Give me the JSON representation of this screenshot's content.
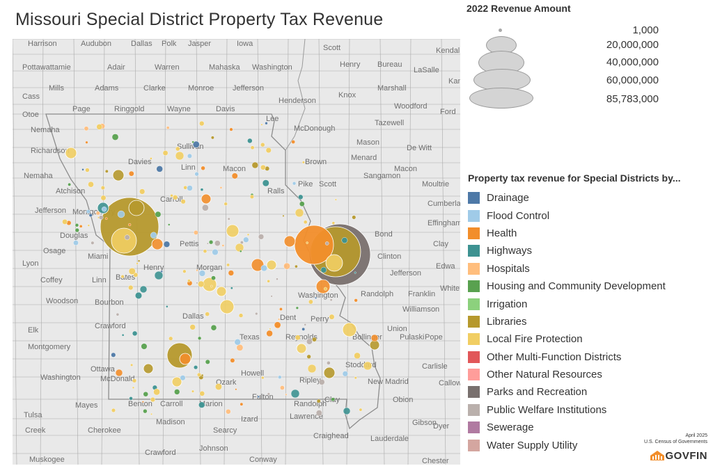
{
  "title": "Missouri Special District Property Tax Revenue",
  "size_legend": {
    "heading": "2022 Revenue Amount",
    "entries": [
      {
        "label": "1,000",
        "value": 1000
      },
      {
        "label": "20,000,000",
        "value": 20000000
      },
      {
        "label": "40,000,000",
        "value": 40000000
      },
      {
        "label": "60,000,000",
        "value": 60000000
      },
      {
        "label": "85,783,000",
        "value": 85783000
      }
    ]
  },
  "color_legend": {
    "heading": "Property tax revenue for Special Districts by...",
    "categories": [
      {
        "label": "Drainage",
        "color": "#4e79a7"
      },
      {
        "label": "Flood Control",
        "color": "#a0cbe8"
      },
      {
        "label": "Health",
        "color": "#f28e2b"
      },
      {
        "label": "Highways",
        "color": "#3d9291"
      },
      {
        "label": "Hospitals",
        "color": "#ffbe7d"
      },
      {
        "label": "Housing and Community Development",
        "color": "#59a14f"
      },
      {
        "label": "Irrigation",
        "color": "#8cd17d"
      },
      {
        "label": "Libraries",
        "color": "#b6992d"
      },
      {
        "label": "Local Fire Protection",
        "color": "#f1ce63"
      },
      {
        "label": "Other Multi-Function Districts",
        "color": "#e15759"
      },
      {
        "label": "Other Natural Resources",
        "color": "#ff9d9a"
      },
      {
        "label": "Parks and Recreation",
        "color": "#79706e"
      },
      {
        "label": "Public Welfare Institutions",
        "color": "#bab0ac"
      },
      {
        "label": "Sewerage",
        "color": "#b07aa1"
      },
      {
        "label": "Water Supply Utility",
        "color": "#d4a6a0"
      }
    ]
  },
  "map": {
    "counties": [
      {
        "label": "Harrison"
      },
      {
        "label": "Audubon"
      },
      {
        "label": "Dallas"
      },
      {
        "label": "Polk"
      },
      {
        "label": "Jasper"
      },
      {
        "label": "Iowa"
      },
      {
        "label": "Scott"
      },
      {
        "label": "Kendall"
      },
      {
        "label": "Pottawattamie"
      },
      {
        "label": "Adair"
      },
      {
        "label": "Warren"
      },
      {
        "label": "Mahaska"
      },
      {
        "label": "Washington"
      },
      {
        "label": "Henry"
      },
      {
        "label": "Bureau"
      },
      {
        "label": "LaSalle"
      },
      {
        "label": "Mills"
      },
      {
        "label": "Adams"
      },
      {
        "label": "Clarke"
      },
      {
        "label": "Monroe"
      },
      {
        "label": "Jefferson"
      },
      {
        "label": "Knox"
      },
      {
        "label": "Marshall"
      },
      {
        "label": "Kan"
      },
      {
        "label": "Cass"
      },
      {
        "label": "Henderson"
      },
      {
        "label": "Page"
      },
      {
        "label": "Ringgold"
      },
      {
        "label": "Wayne"
      },
      {
        "label": "Davis"
      },
      {
        "label": "Woodford"
      },
      {
        "label": "Ford"
      },
      {
        "label": "Otoe"
      },
      {
        "label": "Lee"
      },
      {
        "label": "Tazewell"
      },
      {
        "label": "Nemaha"
      },
      {
        "label": "McDonough"
      },
      {
        "label": "Mason"
      },
      {
        "label": "De Witt"
      },
      {
        "label": "Richardson"
      },
      {
        "label": "Sullivan"
      },
      {
        "label": "Brown"
      },
      {
        "label": "Menard"
      },
      {
        "label": "Davies"
      },
      {
        "label": "Linn"
      },
      {
        "label": "Macon"
      },
      {
        "label": "Nemaha"
      },
      {
        "label": "Sangamon"
      },
      {
        "label": "Macon"
      },
      {
        "label": "Atchison"
      },
      {
        "label": "Pike"
      },
      {
        "label": "Scott"
      },
      {
        "label": "Moultrie"
      },
      {
        "label": "Carroll"
      },
      {
        "label": "Ralls"
      },
      {
        "label": "Jefferson"
      },
      {
        "label": "Montgomery"
      },
      {
        "label": "Cumberland"
      },
      {
        "label": "Douglas"
      },
      {
        "label": "Effingham"
      },
      {
        "label": "Bond"
      },
      {
        "label": "Clay"
      },
      {
        "label": "Osage"
      },
      {
        "label": "Miami"
      },
      {
        "label": "Pettis"
      },
      {
        "label": "Clinton"
      },
      {
        "label": "Lyon"
      },
      {
        "label": "Henry"
      },
      {
        "label": "Morgan"
      },
      {
        "label": "Edwa"
      },
      {
        "label": "Coffey"
      },
      {
        "label": "Linn"
      },
      {
        "label": "Bates"
      },
      {
        "label": "Jefferson"
      },
      {
        "label": "White"
      },
      {
        "label": "Washington"
      },
      {
        "label": "Randolph"
      },
      {
        "label": "Franklin"
      },
      {
        "label": "Woodson"
      },
      {
        "label": "Bourbon"
      },
      {
        "label": "Dallas"
      },
      {
        "label": "Perry"
      },
      {
        "label": "Williamson"
      },
      {
        "label": "Elk"
      },
      {
        "label": "Crawford"
      },
      {
        "label": "Dent"
      },
      {
        "label": "Union"
      },
      {
        "label": "Texas"
      },
      {
        "label": "Reynolds"
      },
      {
        "label": "Bollinger"
      },
      {
        "label": "Pulaski"
      },
      {
        "label": "Montgomery"
      },
      {
        "label": "Pope"
      },
      {
        "label": "Washington"
      },
      {
        "label": "Howell"
      },
      {
        "label": "Ozark"
      },
      {
        "label": "Stoddard"
      },
      {
        "label": "Ripley"
      },
      {
        "label": "New Madrid"
      },
      {
        "label": "Calloway"
      },
      {
        "label": "Ottawa"
      },
      {
        "label": "McDonald"
      },
      {
        "label": "Carlisle"
      },
      {
        "label": "Benton"
      },
      {
        "label": "Carroll"
      },
      {
        "label": "Marion"
      },
      {
        "label": "Fulton"
      },
      {
        "label": "Randolph"
      },
      {
        "label": "Clay"
      },
      {
        "label": "Obion"
      },
      {
        "label": "Mayes"
      },
      {
        "label": "Tulsa"
      },
      {
        "label": "Madison"
      },
      {
        "label": "Izard"
      },
      {
        "label": "Lawrence"
      },
      {
        "label": "Dyer"
      },
      {
        "label": "Gibson"
      },
      {
        "label": "Creek"
      },
      {
        "label": "Cherokee"
      },
      {
        "label": "Searcy"
      },
      {
        "label": "Craighead"
      },
      {
        "label": "Lauderdale"
      },
      {
        "label": "Crawford"
      },
      {
        "label": "Johnson"
      },
      {
        "label": "Conway"
      },
      {
        "label": "Chester"
      },
      {
        "label": "Muskogee"
      }
    ]
  },
  "credit": {
    "line1": "April 2025",
    "line2": "U.S. Census of Governments"
  },
  "brand": {
    "name": "GOVFIN"
  }
}
